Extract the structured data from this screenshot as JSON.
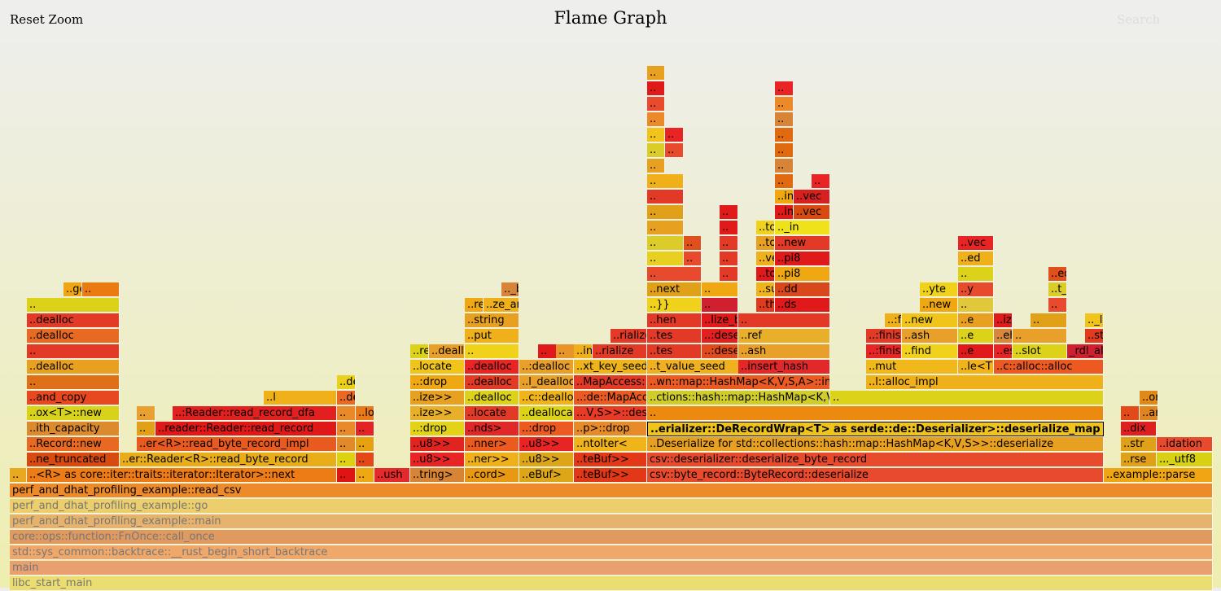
{
  "header": {
    "reset_label": "Reset Zoom",
    "title": "Flame Graph",
    "search_label": "Search"
  },
  "frames": [
    {
      "t": "libc_start_main",
      "c": "#ecdd70",
      "dim": true
    },
    {
      "t": "main",
      "c": "#e8a070",
      "dim": true
    },
    {
      "t": "std::sys_common::backtrace::__rust_begin_short_backtrace",
      "c": "#f0a86a",
      "dim": true
    },
    {
      "t": "core::ops::function::FnOnce::call_once",
      "c": "#e09a60",
      "dim": true
    },
    {
      "t": "perf_and_dhat_profiling_example::main",
      "c": "#e7b36c",
      "dim": true
    },
    {
      "t": "perf_and_dhat_profiling_example::go",
      "c": "#ecce6c",
      "dim": true
    },
    {
      "t": "perf_and_dhat_profiling_example::read_csv",
      "c": "#ed8a2a"
    },
    {
      "t": "..",
      "c": "#e8a820"
    },
    {
      "t": "..<R> as core::iter::traits::iterator::Iterator>::next",
      "c": "#ed7c16"
    },
    {
      "t": "..",
      "c": "#e01414"
    },
    {
      "t": "..",
      "c": "#f0a812"
    },
    {
      "t": "..ush",
      "c": "#e42a2a"
    },
    {
      "t": "..tring>",
      "c": "#d88436"
    },
    {
      "t": "..cord>",
      "c": "#e89812"
    },
    {
      "t": "..eBuf>",
      "c": "#dca618"
    },
    {
      "t": "..teBuf>>",
      "c": "#e23818"
    },
    {
      "t": "csv::byte_record::ByteRecord::deserialize",
      "c": "#e84a2e"
    },
    {
      "t": "..example::parse",
      "c": "#f0a612"
    },
    {
      "t": "..ne_truncated",
      "c": "#d84a10"
    },
    {
      "t": "..er::Reader<R>::read_byte_record",
      "c": "#e9ad1a"
    },
    {
      "t": "..",
      "c": "#dcd212"
    },
    {
      "t": "..",
      "c": "#e44816"
    },
    {
      "t": "..u8>>",
      "c": "#e82424"
    },
    {
      "t": "..ner>>",
      "c": "#f0b01a"
    },
    {
      "t": "..u8>>",
      "c": "#dca618"
    },
    {
      "t": "..teBuf>>",
      "c": "#e23818"
    },
    {
      "t": "csv::deserializer::deserialize_byte_record",
      "c": "#e84a2e"
    },
    {
      "t": "..rse",
      "c": "#e0a018"
    },
    {
      "t": "..._utf8",
      "c": "#d8d012"
    },
    {
      "t": "..Record::new",
      "c": "#e86a22"
    },
    {
      "t": "..er<R>::read_byte_record_impl",
      "c": "#e85a20"
    },
    {
      "t": "..",
      "c": "#e28a2a"
    },
    {
      "t": "..",
      "c": "#e6a010"
    },
    {
      "t": "..u8>>",
      "c": "#e22420"
    },
    {
      "t": "..nner>",
      "c": "#ec5a20"
    },
    {
      "t": "..u8>>",
      "c": "#e82424"
    },
    {
      "t": "..ntoIter<",
      "c": "#f0b41a"
    },
    {
      "t": "..Deserialize for std::collections::hash::map::HashMap<K,V,S>>::deserialize",
      "c": "#e8a020"
    },
    {
      "t": "..str",
      "c": "#e0a018"
    },
    {
      "t": "..idation",
      "c": "#e84a2e"
    },
    {
      "t": "..ith_capacity",
      "c": "#dc8a2e"
    },
    {
      "t": "..",
      "c": "#e0a018"
    },
    {
      "t": "..reader::Reader::read_record",
      "c": "#e01818"
    },
    {
      "t": "..",
      "c": "#e88a2a"
    },
    {
      "t": "..",
      "c": "#e42424"
    },
    {
      "t": "..:drop",
      "c": "#e2d218"
    },
    {
      "t": "..nds>",
      "c": "#e02828"
    },
    {
      "t": "..:drop",
      "c": "#ec5a22"
    },
    {
      "t": "..p>::drop",
      "c": "#e68a2a"
    },
    {
      "t": "..erializer::DeRecordWrap<T> as serde::de::Deserializer>::deserialize_map",
      "c": "#f0c41a",
      "hl": true
    },
    {
      "t": "..dix",
      "c": "#e02020"
    },
    {
      "t": "..ox<T>::new",
      "c": "#d8d218"
    },
    {
      "t": "..",
      "c": "#e8a030"
    },
    {
      "t": "..:Reader::read_record_dfa",
      "c": "#e22020"
    },
    {
      "t": "..",
      "c": "#e88a2a"
    },
    {
      "t": "..locate",
      "c": "#ea7a18"
    },
    {
      "t": "..ize>>",
      "c": "#e8b02a"
    },
    {
      "t": "..locate",
      "c": "#e23a26"
    },
    {
      "t": "..deallocate",
      "c": "#dcd218"
    },
    {
      "t": "...V,S>>::deserialize::MapVisitor<K,V,S> as serde::de::Visitor>::visit_map",
      "c": "#e83a24"
    },
    {
      "t": "..",
      "c": "#ec8a10"
    },
    {
      "t": "..",
      "c": "#e24a18"
    },
    {
      "t": "..ange_malloc",
      "c": "#e08420"
    },
    {
      "t": "..and_copy",
      "c": "#e84820"
    },
    {
      "t": "..l",
      "c": "#f0b01a"
    },
    {
      "t": "..dealloc",
      "c": "#e86824"
    },
    {
      "t": "..ize>>",
      "c": "#e8a020"
    },
    {
      "t": "..dealloc",
      "c": "#dcd21a"
    },
    {
      "t": "..c::dealloc",
      "c": "#f0b41a"
    },
    {
      "t": "..:de::MapAccess::next_entry",
      "c": "#ea5a22"
    },
    {
      "t": "..ctions::hash::map::HashMap<K,V,S>>::insert",
      "c": "#d0cc2a"
    },
    {
      "t": "..",
      "c": "#dcd21a"
    },
    {
      "t": "..or>::allocate",
      "c": "#e08818"
    },
    {
      "t": "..",
      "c": "#e07018"
    },
    {
      "t": "..dealloc",
      "c": "#ead01a"
    },
    {
      "t": "..:drop",
      "c": "#f0a812"
    },
    {
      "t": "..dealloc",
      "c": "#e23a26"
    },
    {
      "t": "..l_dealloc",
      "c": "#e8a02a"
    },
    {
      "t": "..MapAccess::next_entry_seed",
      "c": "#e23a26"
    },
    {
      "t": "..wn::map::HashMap<K,V,S,A>::insert",
      "c": "#ea5a22"
    },
    {
      "t": "..l::alloc_impl",
      "c": "#f0b01a"
    },
    {
      "t": "..dealloc",
      "c": "#e8a020"
    },
    {
      "t": "..locate",
      "c": "#f0c41a"
    },
    {
      "t": "..dealloc",
      "c": "#e82424"
    },
    {
      "t": "..:dealloc",
      "c": "#e8a02a"
    },
    {
      "t": "..xt_key_seed",
      "c": "#f0b41a"
    },
    {
      "t": "..t_value_seed",
      "c": "#f0b020"
    },
    {
      "t": "..insert_hash",
      "c": "#e22828"
    },
    {
      "t": "..mut",
      "c": "#f0b81a"
    },
    {
      "t": "..le<T,A>::insert",
      "c": "#f0b41a"
    },
    {
      "t": "..c::alloc::alloc",
      "c": "#ec5a22"
    },
    {
      "t": "..",
      "c": "#e23a26"
    },
    {
      "t": "..ree",
      "c": "#dcd21a"
    },
    {
      "t": "..dealloc",
      "c": "#e8a02a"
    },
    {
      "t": "..",
      "c": "#f0d21a"
    },
    {
      "t": "..",
      "c": "#e01a1a"
    },
    {
      "t": "..",
      "c": "#e8942a"
    },
    {
      "t": "..int_free",
      "c": "#f0b01a"
    },
    {
      "t": "..rialize",
      "c": "#e23a26"
    },
    {
      "t": "..tes",
      "c": "#e23a26"
    },
    {
      "t": "..:deserialize",
      "c": "#e04a1c"
    },
    {
      "t": "..ash",
      "c": "#e8a02a"
    },
    {
      "t": "..:finish",
      "c": "#e82424"
    },
    {
      "t": "..find",
      "c": "#f0d21a"
    },
    {
      "t": "..e",
      "c": "#e01a1a"
    },
    {
      "t": "..eserve",
      "c": "#e82424"
    },
    {
      "t": "..slot",
      "c": "#dcd21a"
    },
    {
      "t": "_rdl_alloc",
      "c": "#d02030"
    },
    {
      "t": "..dealloc",
      "c": "#e86a22"
    },
    {
      "t": "..put",
      "c": "#f0b01a"
    },
    {
      "t": "..rialize",
      "c": "#e23a26"
    },
    {
      "t": "..tes",
      "c": "#e23a26"
    },
    {
      "t": "..:deserialize",
      "c": "#e22020"
    },
    {
      "t": "..ref",
      "c": "#e8b02a"
    },
    {
      "t": "..:finish",
      "c": "#e23a26"
    },
    {
      "t": "..ash",
      "c": "#e8a02a"
    },
    {
      "t": "..e",
      "c": "#dcd21a"
    },
    {
      "t": "..ehash",
      "c": "#d8883a"
    },
    {
      "t": "..",
      "c": "#e8a02a"
    },
    {
      "t": "..stem>::alloc",
      "c": "#e23a1c"
    },
    {
      "t": "..dealloc",
      "c": "#e23a26"
    },
    {
      "t": "..string",
      "c": "#e8a020"
    },
    {
      "t": "..hen",
      "c": "#e23a26"
    },
    {
      "t": "..lize_byte_buf",
      "c": "#e01a1a"
    },
    {
      "t": "..",
      "c": "#e23a26"
    },
    {
      "t": "..:finish",
      "c": "#f0b01a"
    },
    {
      "t": "..new",
      "c": "#f0c41a"
    },
    {
      "t": "..e",
      "c": "#e8a020"
    },
    {
      "t": "..ize",
      "c": "#e01a1a"
    },
    {
      "t": "..",
      "c": "#e0a018"
    },
    {
      "t": ".._libc_malloc",
      "c": "#f0c41a"
    },
    {
      "t": "..",
      "c": "#dcd21a"
    },
    {
      "t": "..ree",
      "c": "#f0a812"
    },
    {
      "t": "..ze_any",
      "c": "#f0b01a"
    },
    {
      "t": "..}}",
      "c": "#f0d21a"
    },
    {
      "t": "..",
      "c": "#d02030"
    },
    {
      "t": "..then",
      "c": "#e23a1c"
    },
    {
      "t": "..ds",
      "c": "#e01a1a"
    },
    {
      "t": "..new",
      "c": "#f0a812"
    },
    {
      "t": "..",
      "c": "#e0c83a"
    },
    {
      "t": "..",
      "c": "#e84a2e"
    },
    {
      "t": "..get",
      "c": "#f0a612"
    },
    {
      "t": "..",
      "c": "#ec7a10"
    },
    {
      "t": ".._bytes",
      "c": "#d88438"
    },
    {
      "t": "..next",
      "c": "#e0a018"
    },
    {
      "t": "..",
      "c": "#f0a812"
    },
    {
      "t": "..sure}}",
      "c": "#f0b41a"
    },
    {
      "t": "..dd",
      "c": "#d8481c"
    },
    {
      "t": "..yte",
      "c": "#f0d21a"
    },
    {
      "t": "..y",
      "c": "#e84a2e"
    },
    {
      "t": "..t_bytes",
      "c": "#dccc2a"
    },
    {
      "t": "..",
      "c": "#e84a2e"
    },
    {
      "t": "..",
      "c": "#e23a26"
    },
    {
      "t": "..to_vec",
      "c": "#e01a1a"
    },
    {
      "t": "..pi8",
      "c": "#f0a812"
    },
    {
      "t": "..",
      "c": "#dcd21a"
    },
    {
      "t": "..ed",
      "c": "#e0501c"
    },
    {
      "t": "..",
      "c": "#e8d020"
    },
    {
      "t": "..",
      "c": "#e84a2e"
    },
    {
      "t": "..",
      "c": "#e23a26"
    },
    {
      "t": "..vec_in",
      "c": "#f0b01a"
    },
    {
      "t": "..pi8",
      "c": "#e01a1a"
    },
    {
      "t": "..ed",
      "c": "#f0b01a"
    },
    {
      "t": "..",
      "c": "#dccc2a"
    },
    {
      "t": "..",
      "c": "#e0501c"
    },
    {
      "t": "..",
      "c": "#e23a26"
    },
    {
      "t": "..to_vec",
      "c": "#e8a020"
    },
    {
      "t": "..new",
      "c": "#e23a26"
    },
    {
      "t": "..vec",
      "c": "#e82424"
    },
    {
      "t": "..",
      "c": "#e8a020"
    },
    {
      "t": "..",
      "c": "#e01a1a"
    },
    {
      "t": "..to_vec",
      "c": "#f0d21a"
    },
    {
      "t": ".._in",
      "c": "#f0e21a"
    },
    {
      "t": "..",
      "c": "#e0a018"
    },
    {
      "t": "..",
      "c": "#e01a1a"
    },
    {
      "t": "..ing",
      "c": "#e01a1a"
    },
    {
      "t": "..vec",
      "c": "#d84a10"
    },
    {
      "t": "..",
      "c": "#e23a26"
    },
    {
      "t": "..ing",
      "c": "#f0a812"
    },
    {
      "t": "..vec",
      "c": "#d82020"
    },
    {
      "t": "..",
      "c": "#f0b01a"
    },
    {
      "t": "..",
      "c": "#e06a10"
    },
    {
      "t": "..",
      "c": "#e82424"
    },
    {
      "t": "..",
      "c": "#e8a020"
    },
    {
      "t": "..",
      "c": "#d88438"
    },
    {
      "t": "..",
      "c": "#dccc2a"
    },
    {
      "t": "..",
      "c": "#e84a2e"
    },
    {
      "t": "..",
      "c": "#e06a10"
    },
    {
      "t": "..",
      "c": "#f0c41a"
    },
    {
      "t": "..",
      "c": "#e82424"
    },
    {
      "t": "..",
      "c": "#e06a10"
    },
    {
      "t": "..",
      "c": "#ec8a2a"
    },
    {
      "t": "..",
      "c": "#d88438"
    },
    {
      "t": "..",
      "c": "#e84a2e"
    },
    {
      "t": "..",
      "c": "#ec8a2a"
    },
    {
      "t": "..",
      "c": "#e01a1a"
    },
    {
      "t": "..",
      "c": "#e82424"
    },
    {
      "t": "..",
      "c": "#e8a020"
    }
  ]
}
